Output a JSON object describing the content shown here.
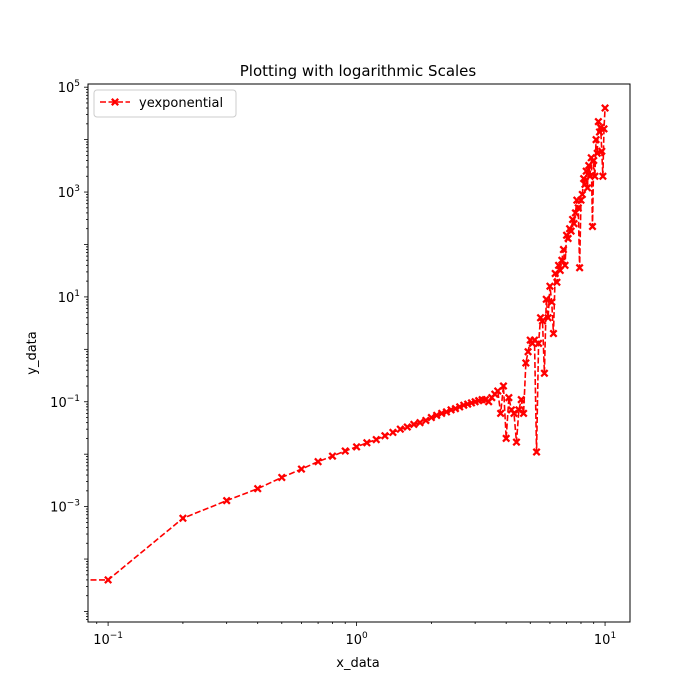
{
  "chart_data": {
    "type": "line",
    "title": "Plotting with logarithmic Scales",
    "xlabel": "x_data",
    "ylabel": "y_data",
    "xscale": "log",
    "yscale": "log",
    "xlim": [
      0.083,
      12.6
    ],
    "ylim": [
      6.3e-06,
      115000
    ],
    "grid": false,
    "legend": {
      "position": "top-left",
      "entries": [
        "yexponential"
      ]
    },
    "x_ticks": [
      {
        "value": 0.1,
        "base": "10",
        "exp": "−1"
      },
      {
        "value": 1,
        "base": "10",
        "exp": "0"
      },
      {
        "value": 10,
        "base": "10",
        "exp": "1"
      }
    ],
    "y_ticks": [
      {
        "value": 0.001,
        "base": "10",
        "exp": "−3"
      },
      {
        "value": 0.1,
        "base": "10",
        "exp": "−1"
      },
      {
        "value": 10,
        "base": "10",
        "exp": "1"
      },
      {
        "value": 1000,
        "base": "10",
        "exp": "3"
      },
      {
        "value": 100000,
        "base": "10",
        "exp": "5"
      }
    ],
    "series": [
      {
        "name": "yexponential",
        "color": "#ff0000",
        "line_style": "dashed",
        "marker": "X",
        "x": [
          0,
          0.1,
          0.2,
          0.3,
          0.4,
          0.5,
          0.6,
          0.7,
          0.8,
          0.9,
          1.0,
          1.1,
          1.2,
          1.3,
          1.4,
          1.5,
          1.6,
          1.7,
          1.8,
          1.9,
          2.0,
          2.1,
          2.2,
          2.3,
          2.4,
          2.5,
          2.6,
          2.7,
          2.8,
          2.9,
          3.0,
          3.1,
          3.2,
          3.3,
          3.4,
          3.5,
          3.6,
          3.7,
          3.8,
          3.9,
          4.0,
          4.1,
          4.2,
          4.3,
          4.4,
          4.5,
          4.6,
          4.7,
          4.8,
          4.9,
          5.0,
          5.1,
          5.2,
          5.3,
          5.4,
          5.5,
          5.6,
          5.7,
          5.8,
          5.9,
          6.0,
          6.1,
          6.2,
          6.3,
          6.4,
          6.5,
          6.6,
          6.7,
          6.8,
          6.9,
          7.0,
          7.1,
          7.2,
          7.3,
          7.4,
          7.5,
          7.6,
          7.7,
          7.8,
          7.9,
          8.0,
          8.1,
          8.2,
          8.3,
          8.4,
          8.5,
          8.6,
          8.7,
          8.8,
          8.9,
          9.0,
          9.1,
          9.2,
          9.3,
          9.4,
          9.5,
          9.6,
          9.7,
          9.8,
          9.9,
          10.0
        ],
        "y": [
          4e-05,
          4e-05,
          0.0006,
          0.0013,
          0.0022,
          0.0036,
          0.0052,
          0.0072,
          0.0092,
          0.0115,
          0.0138,
          0.0165,
          0.019,
          0.0225,
          0.026,
          0.03,
          0.033,
          0.037,
          0.04,
          0.044,
          0.05,
          0.055,
          0.06,
          0.064,
          0.07,
          0.074,
          0.08,
          0.086,
          0.09,
          0.095,
          0.1,
          0.105,
          0.11,
          0.11,
          0.1,
          0.12,
          0.14,
          0.16,
          0.06,
          0.2,
          0.02,
          0.12,
          0.07,
          0.06,
          0.017,
          0.07,
          0.11,
          0.06,
          0.55,
          0.9,
          1.5,
          1.3,
          1.5,
          0.011,
          1.3,
          4,
          3.5,
          0.35,
          9,
          4,
          16,
          8,
          2,
          28,
          19,
          40,
          32,
          50,
          80,
          40,
          150,
          130,
          200,
          180,
          300,
          250,
          400,
          700,
          500,
          36,
          700,
          900,
          1800,
          1400,
          2500,
          1200,
          3200,
          2000,
          4500,
          220,
          4000,
          2000,
          10000,
          5500,
          22000,
          14000,
          17000,
          6000,
          2000,
          16000,
          40000
        ]
      }
    ]
  }
}
